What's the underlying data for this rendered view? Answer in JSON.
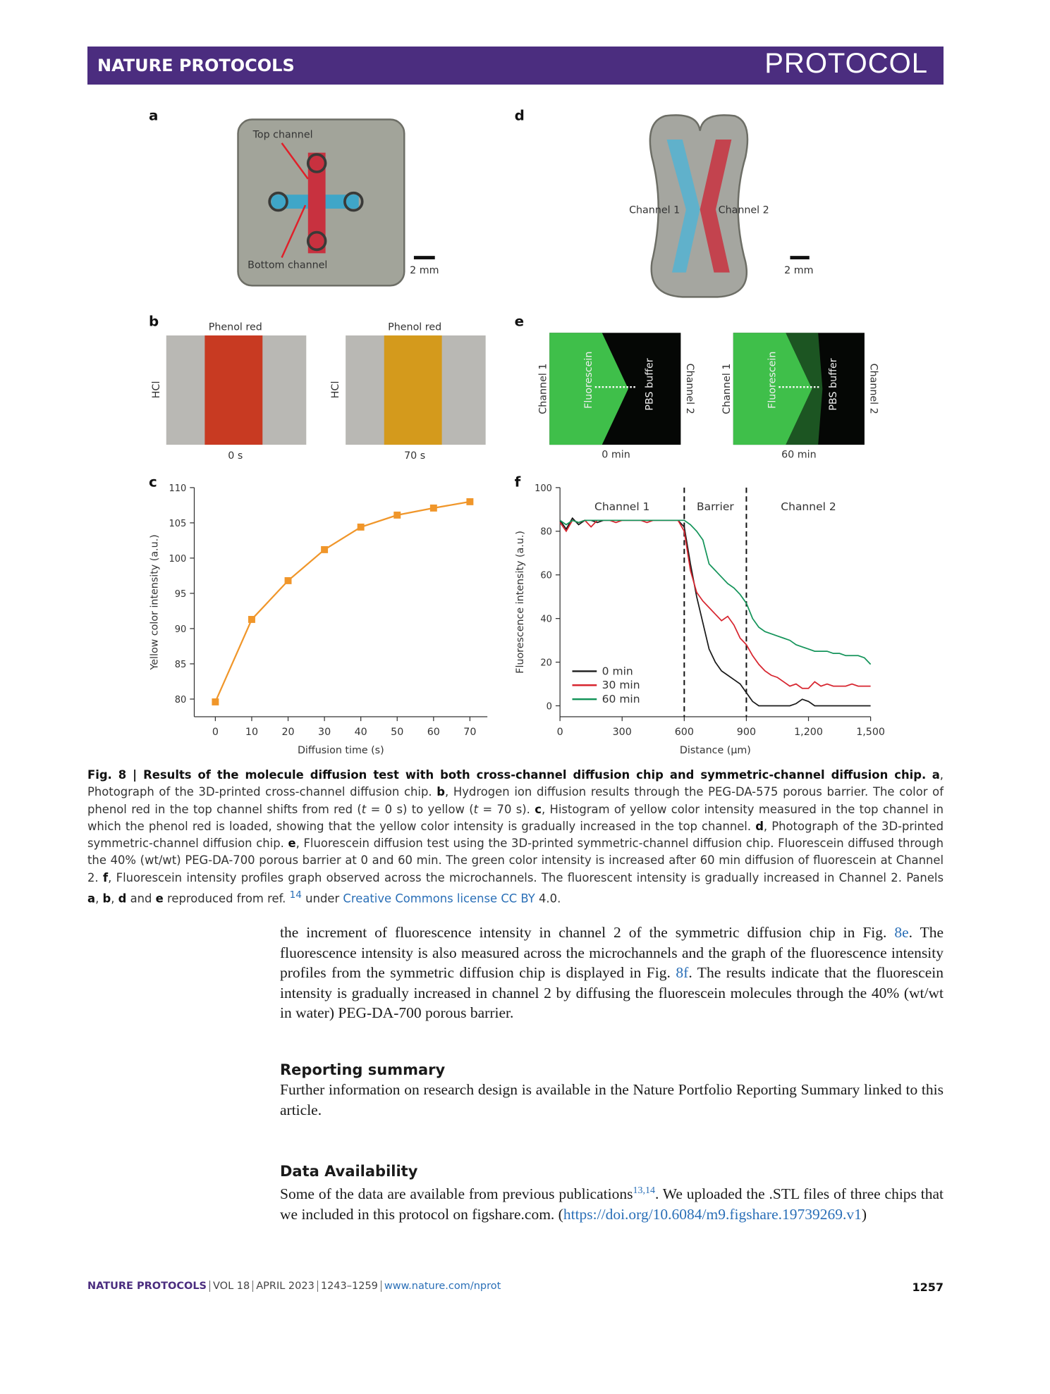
{
  "header": {
    "journal": "NATURE PROTOCOLS",
    "article_type": "PROTOCOL"
  },
  "figure": {
    "a": {
      "label": "a",
      "top_channel": "Top channel",
      "bottom_channel": "Bottom channel",
      "scale": "2 mm"
    },
    "b": {
      "label": "b",
      "left_title": "Phenol red",
      "right_title": "Phenol red",
      "left_side": "HCl",
      "right_side": "HCl",
      "left_time": "0 s",
      "right_time": "70 s"
    },
    "c": {
      "label": "c"
    },
    "d": {
      "label": "d",
      "channel_1": "Channel 1",
      "channel_2": "Channel 2",
      "scale": "2 mm"
    },
    "e": {
      "label": "e",
      "left": {
        "channel_1": "Channel 1",
        "fluorescein": "Fluorescein",
        "buffer": "PBS buffer",
        "channel_2": "Channel 2",
        "time": "0 min"
      },
      "right": {
        "channel_1": "Channel 1",
        "fluorescein": "Fluorescein",
        "buffer": "PBS buffer",
        "channel_2": "Channel 2",
        "time": "60 min"
      }
    },
    "f": {
      "label": "f"
    }
  },
  "chart_data": [
    {
      "type": "line",
      "x_label": "Diffusion time (s)",
      "y_label": "Yellow color intensity (a.u.)",
      "x": [
        0,
        10,
        20,
        30,
        40,
        50,
        60,
        70
      ],
      "values": [
        79.6,
        91.3,
        96.8,
        101.2,
        104.4,
        106.1,
        107.1,
        108.0
      ],
      "color": "#f0962a",
      "marker": "square",
      "xlim": [
        -5.8,
        74.8
      ],
      "ylim": [
        77.5,
        110
      ],
      "xticks": [
        0,
        10,
        20,
        30,
        40,
        50,
        60,
        70
      ],
      "yticks": [
        80,
        85,
        90,
        95,
        100,
        105,
        110
      ]
    },
    {
      "type": "line",
      "x_label": "Distance (μm)",
      "y_label": "Fluorescence intensity (a.u.)",
      "x": [
        0,
        30,
        60,
        90,
        120,
        150,
        180,
        210,
        240,
        270,
        300,
        330,
        360,
        390,
        420,
        450,
        480,
        510,
        540,
        570,
        600,
        630,
        660,
        690,
        720,
        750,
        780,
        810,
        840,
        870,
        900,
        930,
        960,
        990,
        1020,
        1050,
        1080,
        1110,
        1140,
        1170,
        1200,
        1230,
        1260,
        1290,
        1320,
        1350,
        1380,
        1410,
        1440,
        1470,
        1500
      ],
      "series": [
        {
          "name": "0 min",
          "color": "#1a1a1a",
          "values": [
            85,
            81,
            86,
            83,
            85,
            85,
            84,
            85,
            85,
            85,
            85,
            85,
            85,
            85,
            85,
            85,
            85,
            85,
            85,
            85,
            82,
            65,
            50,
            38,
            26,
            20,
            16,
            14,
            12,
            10,
            6,
            2,
            0,
            0,
            0,
            0,
            0,
            0,
            1,
            3,
            2,
            0,
            0,
            0,
            0,
            0,
            0,
            0,
            0,
            0,
            0
          ]
        },
        {
          "name": "30 min",
          "color": "#d7252f",
          "values": [
            84,
            80,
            85,
            84,
            85,
            82,
            85,
            85,
            85,
            84,
            85,
            85,
            85,
            85,
            84,
            85,
            85,
            85,
            85,
            85,
            80,
            62,
            52,
            48,
            45,
            42,
            39,
            41,
            37,
            31,
            28,
            23,
            19,
            16,
            14,
            13,
            11,
            9,
            10,
            8,
            8,
            11,
            9,
            10,
            9,
            9,
            9,
            10,
            9,
            9,
            9
          ]
        },
        {
          "name": "60 min",
          "color": "#14945a",
          "values": [
            85,
            83,
            85,
            84,
            85,
            85,
            85,
            85,
            85,
            85,
            85,
            85,
            85,
            85,
            85,
            85,
            85,
            85,
            85,
            85,
            85,
            83,
            80,
            76,
            65,
            62,
            59,
            56,
            54,
            51,
            47,
            40,
            36,
            34,
            33,
            32,
            31,
            30,
            28,
            27,
            26,
            25,
            25,
            25,
            24,
            24,
            23,
            23,
            23,
            22,
            19
          ]
        }
      ],
      "region_bounds": [
        600,
        900
      ],
      "region_labels": [
        "Channel 1",
        "Barrier",
        "Channel 2"
      ],
      "legend": "lower left",
      "xlim": [
        0,
        1500
      ],
      "ylim": [
        -5,
        100
      ],
      "xticks": [
        0,
        300,
        600,
        900,
        {
          "value": 1200,
          "label": "1,200"
        },
        {
          "value": 1500,
          "label": "1,500"
        }
      ],
      "yticks": [
        0,
        20,
        40,
        60,
        80,
        100
      ]
    }
  ],
  "caption": {
    "parts": [
      "Fig. 8 | Results of the molecule diffusion test with both cross-channel diffusion chip and symmetric-channel diffusion chip.",
      "a",
      ", Photograph of the 3D-printed cross-channel diffusion chip. ",
      "b",
      ", Hydrogen ion diffusion results through the PEG-DA-575 porous barrier. The color of phenol red in the top channel shifts from red (",
      "t",
      " = 0 s) to yellow (",
      "t",
      " = 70 s). ",
      "c",
      ", Histogram of yellow color intensity measured in the top channel in which the phenol red is loaded, showing that the yellow color intensity is gradually increased in the top channel. ",
      "d",
      ", Photograph of the 3D-printed symmetric-channel diffusion chip. ",
      "e",
      ", Fluorescein diffusion test using the 3D-printed symmetric-channel diffusion chip. Fluorescein diffused through the 40% (wt/wt) PEG-DA-700 porous barrier at 0 and 60 min. The green color intensity is increased after 60 min diffusion of fluorescein at Channel 2. ",
      "f",
      ", Fluorescein intensity profiles graph observed across the microchannels. The fluorescent intensity is gradually increased in Channel 2. Panels ",
      "a",
      ", ",
      "b",
      ", ",
      "d",
      " and ",
      "e",
      " reproduced from ref. ",
      "14",
      " under ",
      "Creative Commons license CC BY",
      " 4.0."
    ]
  },
  "body": {
    "parts": [
      "the increment of fluorescence intensity in channel 2 of the symmetric diffusion chip in Fig. ",
      "8e",
      ". The fluorescence intensity is also measured across the microchannels and the graph of the fluorescence intensity profiles from the symmetric diffusion chip is displayed in Fig. ",
      "8f",
      ". The results indicate that the fluorescein intensity is gradually increased in channel 2 by diffusing the fluorescein molecules through the 40% (wt/wt in water) PEG-DA-700 porous barrier."
    ]
  },
  "sections": [
    {
      "heading": "Reporting summary",
      "parts": [
        "Further information on research design is available in the Nature Portfolio Reporting Summary linked to this article."
      ]
    },
    {
      "heading": "Data Availability",
      "parts": [
        "Some of the data are available from previous publications",
        "13,14",
        ". We uploaded the .STL files of three chips that we included in this protocol on figshare.com. (",
        "https://doi.org/10.6084/m9.figshare.19739269.v1",
        ")"
      ]
    }
  ],
  "footer": {
    "journal": "NATURE PROTOCOLS",
    "volume": "VOL 18",
    "date": "APRIL 2023",
    "pages": "1243–1259",
    "url": "www.nature.com/nprot",
    "page_number": "1257"
  }
}
